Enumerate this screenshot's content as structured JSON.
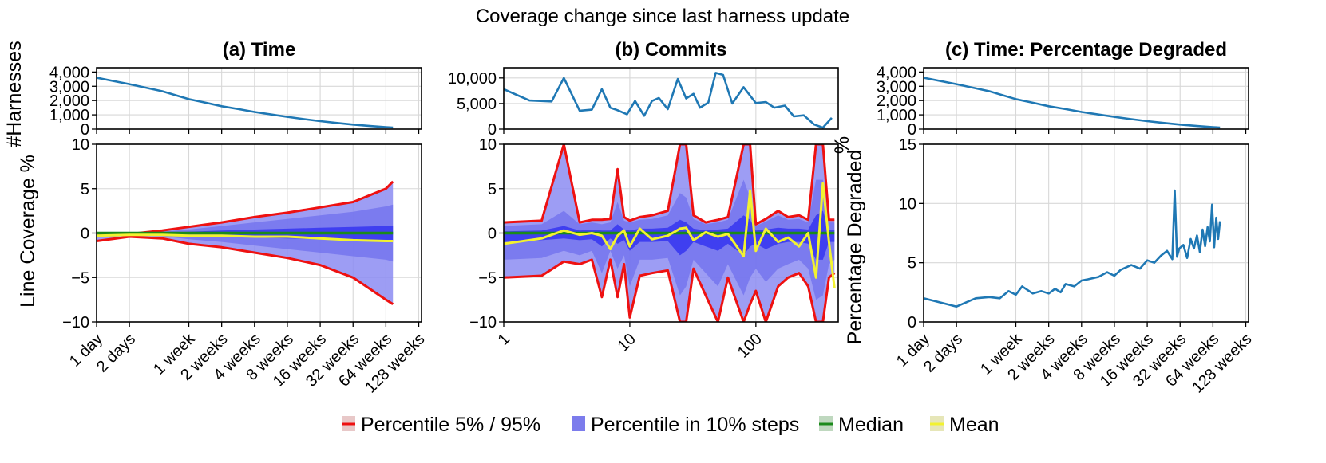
{
  "figure": {
    "title": "Coverage change since last harness update"
  },
  "colors": {
    "harness_line": "#1f78b4",
    "p5_95": "#ee1111",
    "p10_fill_light": "#8c8cf2",
    "p10_fill_dark": "#2b2bf0",
    "median": "#1b8a1b",
    "mean": "#f2f230",
    "legend_swatch_red_fill": "#e8c8c8",
    "legend_swatch_blue_fill": "#7c7cec",
    "legend_swatch_green_fill": "#bfd8bf",
    "legend_swatch_yellow_fill": "#e6e6b8"
  },
  "legend": {
    "items": [
      {
        "label": "Percentile 5% / 95%",
        "swatch": "p5_95"
      },
      {
        "label": "Percentile in 10% steps",
        "swatch": "p10"
      },
      {
        "label": "Median",
        "swatch": "median"
      },
      {
        "label": "Mean",
        "swatch": "mean"
      }
    ]
  },
  "chart_data": [
    {
      "id": "a",
      "type": "line",
      "title": "(a) Time",
      "xscale": "log2",
      "x_unit": "days",
      "xticks": [
        {
          "v": 1,
          "label": "1 day"
        },
        {
          "v": 2,
          "label": "2 days"
        },
        {
          "v": 7,
          "label": "1 week"
        },
        {
          "v": 14,
          "label": "2 weeks"
        },
        {
          "v": 28,
          "label": "4 weeks"
        },
        {
          "v": 56,
          "label": "8 weeks"
        },
        {
          "v": 112,
          "label": "16 weeks"
        },
        {
          "v": 224,
          "label": "32 weeks"
        },
        {
          "v": 448,
          "label": "64 weeks"
        },
        {
          "v": 896,
          "label": "128 weeks"
        }
      ],
      "xlim": [
        1,
        950
      ],
      "top": {
        "ylabel": "#Harnesses",
        "ylim": [
          0,
          4300
        ],
        "yticks": [
          0,
          1000,
          2000,
          3000,
          4000
        ],
        "ytick_labels": [
          "0",
          "1,000",
          "2,000",
          "3,000",
          "4,000"
        ],
        "series": [
          {
            "name": "#Harnesses",
            "x": [
              1,
              2,
              4,
              7,
              10,
              14,
              20,
              28,
              40,
              56,
              80,
              112,
              160,
              224,
              320,
              448,
              520
            ],
            "y": [
              3600,
              3150,
              2650,
              2100,
              1850,
              1600,
              1400,
              1200,
              1020,
              860,
              700,
              560,
              430,
              320,
              220,
              140,
              110
            ]
          }
        ]
      },
      "bottom": {
        "ylabel": "Line Coverage %",
        "ylim": [
          -10,
          10
        ],
        "yticks": [
          -10,
          -5,
          0,
          5,
          10
        ],
        "ytick_labels": [
          "−10",
          "−5",
          "0",
          "5",
          "10"
        ],
        "x": [
          1,
          2,
          4,
          7,
          14,
          28,
          56,
          112,
          224,
          448,
          520
        ],
        "p95": [
          -0.3,
          -0.1,
          0.3,
          0.7,
          1.2,
          1.8,
          2.3,
          2.9,
          3.5,
          5.0,
          5.8
        ],
        "p5": [
          -0.9,
          -0.4,
          -0.6,
          -1.2,
          -1.6,
          -2.2,
          -2.8,
          -3.6,
          -5.0,
          -7.5,
          -8.0
        ],
        "p90": [
          -0.2,
          0.0,
          0.15,
          0.4,
          0.8,
          1.2,
          1.6,
          2.0,
          2.4,
          3.0,
          3.2
        ],
        "p10": [
          -0.5,
          -0.3,
          -0.35,
          -0.7,
          -1.0,
          -1.4,
          -1.8,
          -2.2,
          -2.6,
          -3.0,
          -3.2
        ],
        "p70": [
          0.0,
          0.0,
          0.05,
          0.15,
          0.3,
          0.4,
          0.5,
          0.6,
          0.7,
          0.8,
          0.8
        ],
        "p30": [
          -0.2,
          -0.15,
          -0.15,
          -0.3,
          -0.4,
          -0.5,
          -0.6,
          -0.7,
          -0.8,
          -0.9,
          -0.9
        ],
        "median": [
          0,
          0,
          0,
          0,
          0,
          0,
          0,
          0,
          0,
          0,
          0
        ],
        "mean": [
          -0.3,
          -0.2,
          -0.2,
          -0.3,
          -0.3,
          -0.4,
          -0.4,
          -0.6,
          -0.8,
          -0.9,
          -0.9
        ]
      }
    },
    {
      "id": "b",
      "type": "line",
      "title": "(b) Commits",
      "xscale": "log10",
      "x_unit": "commits",
      "xticks": [
        {
          "v": 1,
          "label": "1"
        },
        {
          "v": 10,
          "label": "10"
        },
        {
          "v": 100,
          "label": "100"
        }
      ],
      "xlim": [
        1,
        450
      ],
      "top": {
        "ylabel": "",
        "ylim": [
          0,
          12000
        ],
        "yticks": [
          0,
          5000,
          10000
        ],
        "ytick_labels": [
          "0",
          "5,000",
          "10,000"
        ],
        "series": [
          {
            "name": "#Harnesses",
            "x": [
              1,
              1.6,
              2.4,
              3,
              4,
              5,
              6,
              7,
              8,
              9.5,
              11,
              13,
              15,
              17,
              20,
              24,
              28,
              32,
              36,
              42,
              48,
              55,
              65,
              80,
              100,
              120,
              140,
              170,
              200,
              240,
              290,
              340,
              400
            ],
            "y": [
              7800,
              5600,
              5400,
              10000,
              3600,
              3800,
              7800,
              4200,
              3700,
              2900,
              5500,
              2600,
              5500,
              6100,
              3900,
              9800,
              6000,
              6900,
              4200,
              5200,
              11000,
              10600,
              5000,
              8200,
              5100,
              5300,
              4200,
              4600,
              2500,
              2700,
              900,
              300,
              2200
            ]
          }
        ]
      },
      "bottom": {
        "ylabel": "",
        "ylim": [
          -10,
          10
        ],
        "yticks": [
          -10,
          -5,
          0,
          5,
          10
        ],
        "ytick_labels": [
          "−10",
          "−5",
          "0",
          "5",
          "10"
        ],
        "x": [
          1,
          2,
          3,
          4,
          5,
          6,
          7,
          8,
          9,
          10,
          12,
          15,
          20,
          25,
          28,
          32,
          40,
          50,
          60,
          80,
          90,
          100,
          120,
          150,
          180,
          220,
          260,
          300,
          340,
          380,
          420
        ],
        "p95": [
          1.2,
          1.4,
          10,
          1.2,
          1.5,
          1.5,
          1.6,
          7.2,
          1.8,
          1.4,
          1.8,
          2.0,
          2.5,
          10,
          10,
          2.0,
          1.2,
          1.5,
          1.8,
          10,
          10,
          1.0,
          1.6,
          2.5,
          1.8,
          2.0,
          1.5,
          10,
          10,
          1.5,
          1.5
        ],
        "p5": [
          -5.0,
          -4.8,
          -3.2,
          -3.5,
          -3.0,
          -7.2,
          -3.0,
          -7.2,
          -3.5,
          -9.5,
          -4.8,
          -4.5,
          -4.2,
          -10,
          -10,
          -4.0,
          -7.0,
          -10,
          -5.0,
          -10,
          -8.0,
          -6.5,
          -10,
          -6.0,
          -5.0,
          -4.5,
          -6.0,
          -10,
          -10,
          -5.0,
          -4.5
        ],
        "p90": [
          0.8,
          1.0,
          2.5,
          1.0,
          1.2,
          1.0,
          1.2,
          3.5,
          1.4,
          1.2,
          1.5,
          1.6,
          2.0,
          4.5,
          4.0,
          1.6,
          1.0,
          1.2,
          1.5,
          6.0,
          4.0,
          0.8,
          1.3,
          2.0,
          1.5,
          1.6,
          1.2,
          6.0,
          6.0,
          1.2,
          1.2
        ],
        "p10": [
          -3.0,
          -2.8,
          -2.0,
          -2.5,
          -2.0,
          -4.5,
          -2.0,
          -4.0,
          -2.5,
          -6.0,
          -3.0,
          -3.0,
          -2.8,
          -7.0,
          -6.0,
          -3.0,
          -4.5,
          -6.0,
          -3.5,
          -7.0,
          -5.0,
          -4.0,
          -5.5,
          -4.0,
          -3.5,
          -3.0,
          -4.0,
          -7.5,
          -7.0,
          -3.5,
          -3.0
        ],
        "p70": [
          0.2,
          0.3,
          0.8,
          0.3,
          0.4,
          0.3,
          0.3,
          1.0,
          0.4,
          0.3,
          0.5,
          0.5,
          0.6,
          1.5,
          1.2,
          0.5,
          0.3,
          0.4,
          0.5,
          2.0,
          1.5,
          0.3,
          0.4,
          0.6,
          0.5,
          0.5,
          0.4,
          2.0,
          2.5,
          0.4,
          0.4
        ],
        "p30": [
          -1.0,
          -0.8,
          -0.6,
          -0.8,
          -0.7,
          -1.5,
          -0.6,
          -1.2,
          -0.8,
          -2.0,
          -1.0,
          -1.0,
          -0.9,
          -2.5,
          -2.0,
          -1.0,
          -1.5,
          -2.0,
          -1.2,
          -2.5,
          -1.5,
          -1.2,
          -1.8,
          -1.2,
          -1.0,
          -1.0,
          -1.2,
          -3.0,
          -3.0,
          -1.0,
          -1.0
        ],
        "median": [
          0,
          0,
          0,
          0,
          0,
          0,
          0,
          0,
          0,
          0,
          0,
          0,
          0,
          0,
          0,
          0,
          0,
          0,
          0,
          0,
          0,
          0,
          0,
          0,
          0,
          0,
          0,
          0,
          0,
          0,
          0
        ],
        "mean": [
          -1.2,
          -0.6,
          0.3,
          -0.2,
          0.0,
          -0.3,
          -1.8,
          -0.3,
          0.3,
          -1.5,
          0.5,
          -0.7,
          -0.3,
          0.5,
          0.6,
          -0.8,
          0.1,
          -0.4,
          -0.1,
          -2.6,
          4.8,
          -2.0,
          0.5,
          -1.0,
          -0.5,
          -1.5,
          0.0,
          -5.0,
          5.6,
          -1.0,
          -6.2
        ]
      }
    },
    {
      "id": "c",
      "type": "line",
      "title": "(c) Time: Percentage Degraded",
      "xscale": "log2",
      "x_unit": "days",
      "xticks": [
        {
          "v": 1,
          "label": "1 day"
        },
        {
          "v": 2,
          "label": "2 days"
        },
        {
          "v": 7,
          "label": "1 week"
        },
        {
          "v": 14,
          "label": "2 weeks"
        },
        {
          "v": 28,
          "label": "4 weeks"
        },
        {
          "v": 56,
          "label": "8 weeks"
        },
        {
          "v": 112,
          "label": "16 weeks"
        },
        {
          "v": 224,
          "label": "32 weeks"
        },
        {
          "v": 448,
          "label": "64 weeks"
        },
        {
          "v": 896,
          "label": "128 weeks"
        }
      ],
      "xlim": [
        1,
        950
      ],
      "top": {
        "ylabel": "%",
        "ylim": [
          0,
          4300
        ],
        "yticks": [
          0,
          1000,
          2000,
          3000,
          4000
        ],
        "ytick_labels": [
          "0",
          "1,000",
          "2,000",
          "3,000",
          "4,000"
        ],
        "series": [
          {
            "name": "#Harnesses",
            "x": [
              1,
              2,
              4,
              7,
              10,
              14,
              20,
              28,
              40,
              56,
              80,
              112,
              160,
              224,
              320,
              448,
              520
            ],
            "y": [
              3600,
              3150,
              2650,
              2100,
              1850,
              1600,
              1400,
              1200,
              1020,
              860,
              700,
              560,
              430,
              320,
              220,
              140,
              110
            ]
          }
        ]
      },
      "bottom": {
        "ylabel": "Percentage Degraded",
        "ylim": [
          0,
          15
        ],
        "yticks": [
          0,
          5,
          10,
          15
        ],
        "ytick_labels": [
          "0",
          "5",
          "10",
          "15"
        ],
        "series": [
          {
            "name": "Percentage Degraded",
            "x": [
              1,
              2,
              3,
              4,
              5,
              6,
              7,
              8,
              10,
              12,
              14,
              16,
              18,
              20,
              24,
              28,
              32,
              40,
              48,
              56,
              64,
              80,
              96,
              112,
              130,
              150,
              170,
              190,
              200,
              210,
              220,
              240,
              260,
              280,
              300,
              320,
              340,
              360,
              380,
              400,
              420,
              440,
              460,
              480,
              500,
              520
            ],
            "y": [
              2.0,
              1.3,
              2.0,
              2.1,
              2.0,
              2.6,
              2.3,
              3.0,
              2.4,
              2.6,
              2.4,
              2.8,
              2.5,
              3.2,
              3.0,
              3.5,
              3.6,
              3.8,
              4.2,
              3.9,
              4.4,
              4.8,
              4.5,
              5.2,
              5.0,
              5.6,
              6.0,
              5.3,
              11.1,
              5.5,
              6.2,
              6.5,
              5.4,
              7.0,
              6.2,
              7.3,
              5.9,
              7.8,
              6.4,
              8.0,
              6.8,
              9.9,
              6.3,
              8.8,
              7.0,
              8.5
            ]
          }
        ]
      }
    }
  ]
}
